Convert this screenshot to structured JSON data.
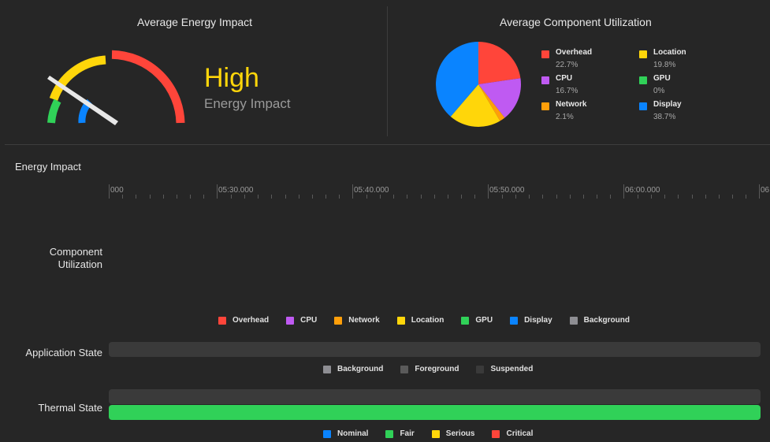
{
  "energy": {
    "title": "Average Energy Impact",
    "level": "High",
    "label": "Energy Impact"
  },
  "components": {
    "title": "Average Component Utilization",
    "items": [
      {
        "name": "Overhead",
        "percent": "22.7%",
        "value": 22.7,
        "color": "#ff453a"
      },
      {
        "name": "Location",
        "percent": "19.8%",
        "value": 19.8,
        "color": "#ffd60a"
      },
      {
        "name": "CPU",
        "percent": "16.7%",
        "value": 16.7,
        "color": "#bf5af2"
      },
      {
        "name": "GPU",
        "percent": "0%",
        "value": 0,
        "color": "#30d158"
      },
      {
        "name": "Network",
        "percent": "2.1%",
        "value": 2.1,
        "color": "#ff9f0a"
      },
      {
        "name": "Display",
        "percent": "38.7%",
        "value": 38.7,
        "color": "#0a84ff"
      }
    ]
  },
  "timeline": {
    "section_title": "Energy Impact",
    "first_label": "000",
    "last_label": "06",
    "ticks": [
      "05:30.000",
      "05:40.000",
      "05:50.000",
      "06:00.000"
    ],
    "component_label": "Component Utilization",
    "component_legend": [
      {
        "name": "Overhead",
        "color": "#ff453a"
      },
      {
        "name": "CPU",
        "color": "#bf5af2"
      },
      {
        "name": "Network",
        "color": "#ff9f0a"
      },
      {
        "name": "Location",
        "color": "#ffd60a"
      },
      {
        "name": "GPU",
        "color": "#30d158"
      },
      {
        "name": "Display",
        "color": "#0a84ff"
      },
      {
        "name": "Background",
        "color": "#8e8e93"
      }
    ],
    "app_state_label": "Application State",
    "app_state_legend": [
      {
        "name": "Background",
        "color": "#8e8e93"
      },
      {
        "name": "Foreground",
        "color": "#5a5a5a"
      },
      {
        "name": "Suspended",
        "color": "#3a3a3a"
      }
    ],
    "thermal_label": "Thermal State",
    "thermal_legend": [
      {
        "name": "Nominal",
        "color": "#0a84ff"
      },
      {
        "name": "Fair",
        "color": "#30d158"
      },
      {
        "name": "Serious",
        "color": "#ffd60a"
      },
      {
        "name": "Critical",
        "color": "#ff453a"
      }
    ]
  }
}
